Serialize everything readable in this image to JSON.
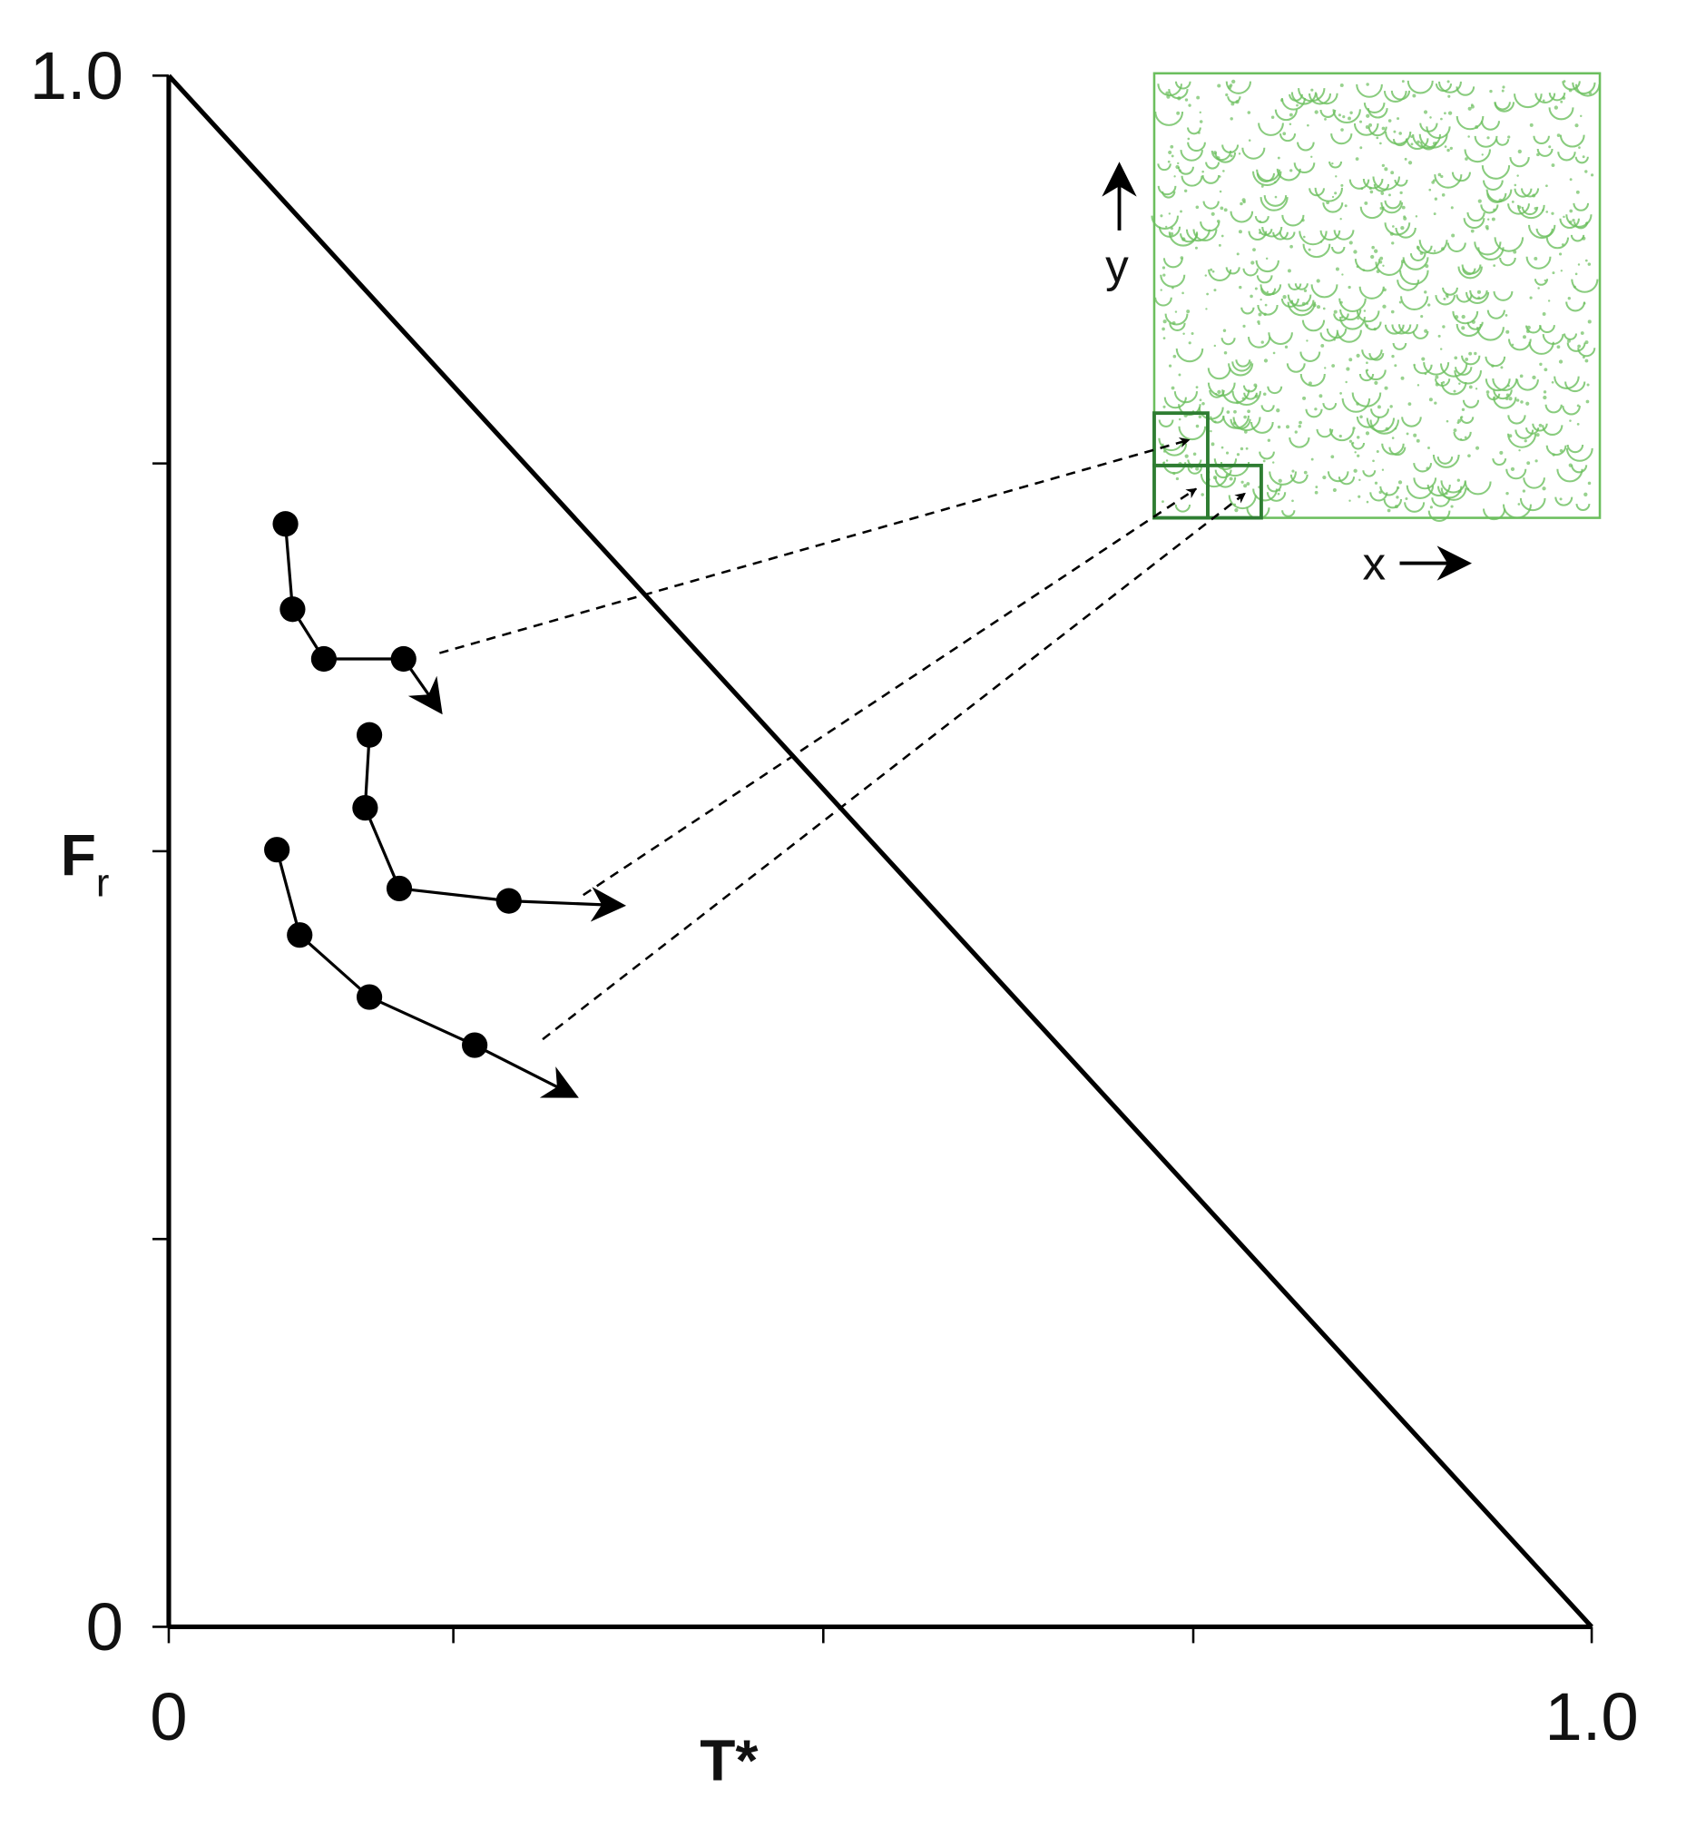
{
  "chart_data": {
    "type": "line",
    "x_label": "T*",
    "y_label": "F",
    "y_label_subscript": "r",
    "xlim": [
      0,
      1
    ],
    "ylim": [
      0,
      1
    ],
    "xticks": [
      0,
      {
        "value": 1,
        "label": "1.0"
      }
    ],
    "yticks": [
      0,
      {
        "value": 1,
        "label": "1.0"
      }
    ],
    "minor_xticks": [
      0.2,
      0.46,
      0.72
    ],
    "minor_yticks": [
      0.25,
      0.5,
      0.75
    ],
    "reference_line": {
      "x": [
        0,
        1
      ],
      "y": [
        1,
        0
      ],
      "color": "#000000"
    },
    "series": [
      {
        "color": "#000000",
        "x": [
          0.082,
          0.087,
          0.109,
          0.165
        ],
        "y": [
          0.711,
          0.656,
          0.624,
          0.624
        ],
        "arrow_to": {
          "x": 0.191,
          "y": 0.59
        }
      },
      {
        "color": "#000000",
        "x": [
          0.141,
          0.138,
          0.162,
          0.239
        ],
        "y": [
          0.575,
          0.528,
          0.476,
          0.468
        ],
        "arrow_to": {
          "x": 0.319,
          "y": 0.465
        }
      },
      {
        "color": "#000000",
        "x": [
          0.076,
          0.092,
          0.141,
          0.215
        ],
        "y": [
          0.501,
          0.446,
          0.406,
          0.375
        ],
        "arrow_to": {
          "x": 0.286,
          "y": 0.342
        }
      }
    ],
    "inset": {
      "x_label": "x",
      "y_label": "y",
      "color": "#6cbf5e",
      "box_color": "#2e7d32"
    }
  }
}
